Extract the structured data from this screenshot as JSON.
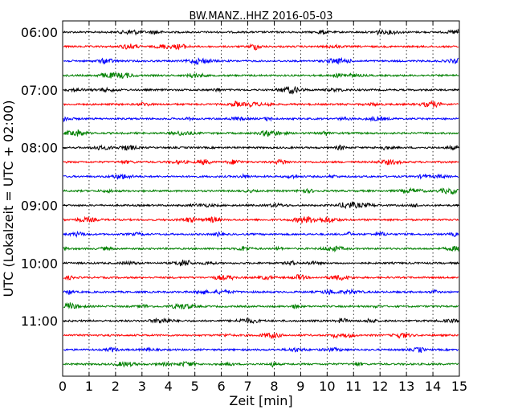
{
  "chart_data": {
    "type": "line",
    "title": "BW.MANZ..HHZ 2016-05-03",
    "xlabel": "Zeit  [min]",
    "ylabel": "UTC (Lokalzeit = UTC + 02:00)",
    "xlim": [
      0,
      15
    ],
    "x_ticks": [
      "0",
      "1",
      "2",
      "3",
      "4",
      "5",
      "6",
      "7",
      "8",
      "9",
      "10",
      "11",
      "12",
      "13",
      "14",
      "15"
    ],
    "y_ticks": [
      "06:00",
      "07:00",
      "08:00",
      "09:00",
      "10:00",
      "11:00"
    ],
    "grid": "vertical dotted",
    "series_colors": [
      "#000000",
      "#ff0000",
      "#0000ff",
      "#008000"
    ],
    "traces": [
      {
        "start": "06:00",
        "color": "#000000"
      },
      {
        "start": "06:15",
        "color": "#ff0000"
      },
      {
        "start": "06:30",
        "color": "#0000ff"
      },
      {
        "start": "06:45",
        "color": "#008000"
      },
      {
        "start": "07:00",
        "color": "#000000"
      },
      {
        "start": "07:15",
        "color": "#ff0000"
      },
      {
        "start": "07:30",
        "color": "#0000ff"
      },
      {
        "start": "07:45",
        "color": "#008000"
      },
      {
        "start": "08:00",
        "color": "#000000"
      },
      {
        "start": "08:15",
        "color": "#ff0000"
      },
      {
        "start": "08:30",
        "color": "#0000ff"
      },
      {
        "start": "08:45",
        "color": "#008000"
      },
      {
        "start": "09:00",
        "color": "#000000"
      },
      {
        "start": "09:15",
        "color": "#ff0000"
      },
      {
        "start": "09:30",
        "color": "#0000ff"
      },
      {
        "start": "09:45",
        "color": "#008000"
      },
      {
        "start": "10:00",
        "color": "#000000"
      },
      {
        "start": "10:15",
        "color": "#ff0000"
      },
      {
        "start": "10:30",
        "color": "#0000ff"
      },
      {
        "start": "10:45",
        "color": "#008000"
      },
      {
        "start": "11:00",
        "color": "#000000"
      },
      {
        "start": "11:15",
        "color": "#ff0000"
      },
      {
        "start": "11:30",
        "color": "#0000ff"
      },
      {
        "start": "11:45",
        "color": "#008000"
      }
    ]
  }
}
